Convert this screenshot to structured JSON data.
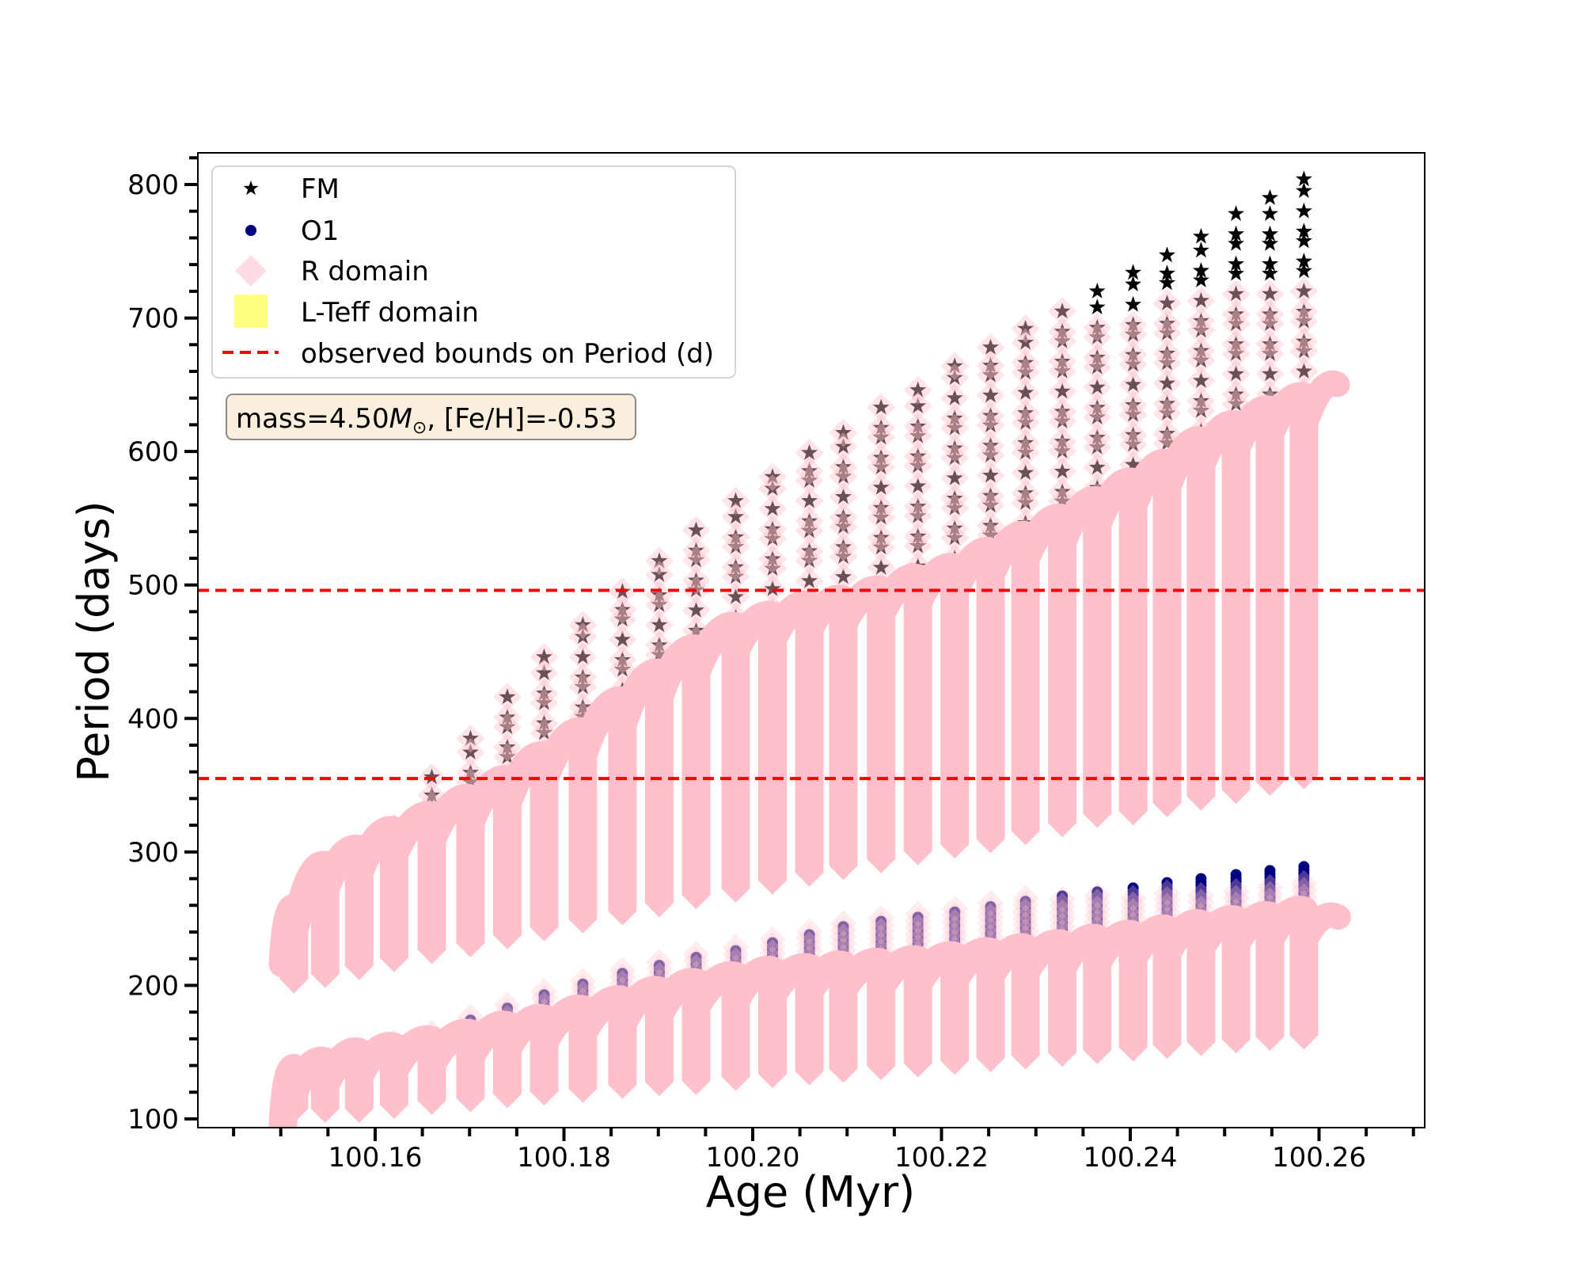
{
  "chart_data": {
    "type": "scatter",
    "title": "",
    "xlabel": "Age (Myr)",
    "ylabel": "Period (days)",
    "xlim": [
      100.1406,
      100.2706
    ],
    "ylim": [
      93.5,
      823.7
    ],
    "x_ticks": [
      100.16,
      100.18,
      100.2,
      100.22,
      100.24,
      100.26
    ],
    "x_tick_labels": [
      "100.16",
      "100.18",
      "100.20",
      "100.22",
      "100.24",
      "100.26"
    ],
    "x_minor_step": 0.005,
    "y_ticks": [
      100,
      200,
      300,
      400,
      500,
      600,
      700,
      800
    ],
    "y_tick_labels": [
      "100",
      "200",
      "300",
      "400",
      "500",
      "600",
      "700",
      "800"
    ],
    "y_minor_step": 20,
    "grid": false,
    "legend_position": "upper-left",
    "legend": [
      {
        "label": "FM",
        "marker": "star-icon",
        "color": "#000000"
      },
      {
        "label": "O1",
        "marker": "circle-icon",
        "color": "#000080"
      },
      {
        "label": "R domain",
        "marker": "diamond-icon",
        "color": "#ffc0cb"
      },
      {
        "label": "L-Teff domain",
        "marker": "square-icon",
        "color": "#ffff80"
      },
      {
        "label": "observed bounds on Period (d)",
        "marker": "dashed-line-icon",
        "color": "#ff0000"
      }
    ],
    "annotation": {
      "prefix": "mass=4.50",
      "symbol": "M",
      "subscript": "⊙",
      "suffix": ", [Fe/H]=-0.53"
    },
    "observed_period_bounds": [
      355,
      496
    ],
    "colors": {
      "fm": "#000000",
      "o1": "#000080",
      "r_domain": "#ffc0cb",
      "l_teff_domain": "#ffff80",
      "bounds": "#ff0000"
    },
    "columns": [
      {
        "age": 100.1514,
        "fm_top": null,
        "fm_r_top": null,
        "upper_top": 258,
        "upper_bottom": 194,
        "o1_top": null,
        "o1_r_top": null,
        "lower_top": 138,
        "lower_bottom": 97
      },
      {
        "age": 100.1547,
        "fm_top": null,
        "fm_r_top": null,
        "upper_top": 290,
        "upper_bottom": 198,
        "o1_top": null,
        "o1_r_top": null,
        "lower_top": 143,
        "lower_bottom": 97
      },
      {
        "age": 100.1583,
        "fm_top": null,
        "fm_r_top": null,
        "upper_top": 302,
        "upper_bottom": 204,
        "o1_top": null,
        "o1_r_top": null,
        "lower_top": 150,
        "lower_bottom": 97
      },
      {
        "age": 100.162,
        "fm_top": 318,
        "fm_r_top": 318,
        "upper_top": 316,
        "upper_bottom": 210,
        "o1_top": 155,
        "o1_r_top": 155,
        "lower_top": 154,
        "lower_bottom": 100
      },
      {
        "age": 100.166,
        "fm_top": 356,
        "fm_r_top": 356,
        "upper_top": 327,
        "upper_bottom": 216,
        "o1_top": 162,
        "o1_r_top": 162,
        "lower_top": 159,
        "lower_bottom": 103
      },
      {
        "age": 100.1701,
        "fm_top": 385,
        "fm_r_top": 385,
        "upper_top": 340,
        "upper_bottom": 221,
        "o1_top": 174,
        "o1_r_top": 174,
        "lower_top": 164,
        "lower_bottom": 105
      },
      {
        "age": 100.174,
        "fm_top": 416,
        "fm_r_top": 416,
        "upper_top": 354,
        "upper_bottom": 227,
        "o1_top": 183,
        "o1_r_top": 183,
        "lower_top": 170,
        "lower_bottom": 108
      },
      {
        "age": 100.1779,
        "fm_top": 446,
        "fm_r_top": 446,
        "upper_top": 372,
        "upper_bottom": 233,
        "o1_top": 193,
        "o1_r_top": 193,
        "lower_top": 175,
        "lower_bottom": 110
      },
      {
        "age": 100.182,
        "fm_top": 470,
        "fm_r_top": 470,
        "upper_top": 390,
        "upper_bottom": 239,
        "o1_top": 201,
        "o1_r_top": 201,
        "lower_top": 182,
        "lower_bottom": 112
      },
      {
        "age": 100.1862,
        "fm_top": 495,
        "fm_r_top": 495,
        "upper_top": 413,
        "upper_bottom": 245,
        "o1_top": 209,
        "o1_r_top": 209,
        "lower_top": 189,
        "lower_bottom": 115
      },
      {
        "age": 100.1901,
        "fm_top": 518,
        "fm_r_top": 518,
        "upper_top": 434,
        "upper_bottom": 251,
        "o1_top": 215,
        "o1_r_top": 215,
        "lower_top": 196,
        "lower_bottom": 117
      },
      {
        "age": 100.194,
        "fm_top": 541,
        "fm_r_top": 541,
        "upper_top": 452,
        "upper_bottom": 257,
        "o1_top": 221,
        "o1_r_top": 221,
        "lower_top": 202,
        "lower_bottom": 118
      },
      {
        "age": 100.1982,
        "fm_top": 563,
        "fm_r_top": 563,
        "upper_top": 469,
        "upper_bottom": 262,
        "o1_top": 226,
        "o1_r_top": 226,
        "lower_top": 207,
        "lower_bottom": 121
      },
      {
        "age": 100.2021,
        "fm_top": 581,
        "fm_r_top": 581,
        "upper_top": 477,
        "upper_bottom": 268,
        "o1_top": 232,
        "o1_r_top": 232,
        "lower_top": 211,
        "lower_bottom": 123
      },
      {
        "age": 100.206,
        "fm_top": 599,
        "fm_r_top": 599,
        "upper_top": 485,
        "upper_bottom": 274,
        "o1_top": 238,
        "o1_r_top": 238,
        "lower_top": 213,
        "lower_bottom": 125
      },
      {
        "age": 100.2096,
        "fm_top": 614,
        "fm_r_top": 614,
        "upper_top": 489,
        "upper_bottom": 279,
        "o1_top": 244,
        "o1_r_top": 244,
        "lower_top": 215,
        "lower_bottom": 127
      },
      {
        "age": 100.2136,
        "fm_top": 633,
        "fm_r_top": 633,
        "upper_top": 496,
        "upper_bottom": 284,
        "o1_top": 248,
        "o1_r_top": 248,
        "lower_top": 217,
        "lower_bottom": 129
      },
      {
        "age": 100.2175,
        "fm_top": 646,
        "fm_r_top": 646,
        "upper_top": 505,
        "upper_bottom": 290,
        "o1_top": 251,
        "o1_r_top": 251,
        "lower_top": 219,
        "lower_bottom": 131
      },
      {
        "age": 100.2214,
        "fm_top": 664,
        "fm_r_top": 664,
        "upper_top": 513,
        "upper_bottom": 295,
        "o1_top": 255,
        "o1_r_top": 255,
        "lower_top": 222,
        "lower_bottom": 133
      },
      {
        "age": 100.2252,
        "fm_top": 678,
        "fm_r_top": 678,
        "upper_top": 525,
        "upper_bottom": 299,
        "o1_top": 259,
        "o1_r_top": 259,
        "lower_top": 225,
        "lower_bottom": 135
      },
      {
        "age": 100.2289,
        "fm_top": 692,
        "fm_r_top": 692,
        "upper_top": 537,
        "upper_bottom": 305,
        "o1_top": 263,
        "o1_r_top": 263,
        "lower_top": 228,
        "lower_bottom": 137
      },
      {
        "age": 100.2328,
        "fm_top": 705,
        "fm_r_top": 705,
        "upper_top": 550,
        "upper_bottom": 311,
        "o1_top": 267,
        "o1_r_top": 264,
        "lower_top": 231,
        "lower_bottom": 139
      },
      {
        "age": 100.2365,
        "fm_top": 720,
        "fm_r_top": 705,
        "upper_top": 563,
        "upper_bottom": 318,
        "o1_top": 270,
        "o1_r_top": 265,
        "lower_top": 235,
        "lower_bottom": 141
      },
      {
        "age": 100.2403,
        "fm_top": 734,
        "fm_r_top": 708,
        "upper_top": 577,
        "upper_bottom": 320,
        "o1_top": 273,
        "o1_r_top": 266,
        "lower_top": 238,
        "lower_bottom": 143
      },
      {
        "age": 100.2439,
        "fm_top": 747,
        "fm_r_top": 712,
        "upper_top": 591,
        "upper_bottom": 326,
        "o1_top": 277,
        "o1_r_top": 267,
        "lower_top": 242,
        "lower_bottom": 145
      },
      {
        "age": 100.2475,
        "fm_top": 761,
        "fm_r_top": 717,
        "upper_top": 608,
        "upper_bottom": 331,
        "o1_top": 280,
        "o1_r_top": 269,
        "lower_top": 246,
        "lower_bottom": 147
      },
      {
        "age": 100.2512,
        "fm_top": 778,
        "fm_r_top": 720,
        "upper_top": 620,
        "upper_bottom": 336,
        "o1_top": 283,
        "o1_r_top": 271,
        "lower_top": 249,
        "lower_bottom": 149
      },
      {
        "age": 100.2548,
        "fm_top": 790,
        "fm_r_top": 725,
        "upper_top": 631,
        "upper_bottom": 342,
        "o1_top": 286,
        "o1_r_top": 273,
        "lower_top": 252,
        "lower_bottom": 151
      },
      {
        "age": 100.2584,
        "fm_top": 804,
        "fm_r_top": 723,
        "upper_top": 641,
        "upper_bottom": 347,
        "o1_top": 289,
        "o1_r_top": 274,
        "lower_top": 256,
        "lower_bottom": 152
      }
    ],
    "upper_tail_end": {
      "age": 100.2626,
      "period": 649
    },
    "lower_tail_end": {
      "age": 100.2627,
      "period": 250
    }
  }
}
